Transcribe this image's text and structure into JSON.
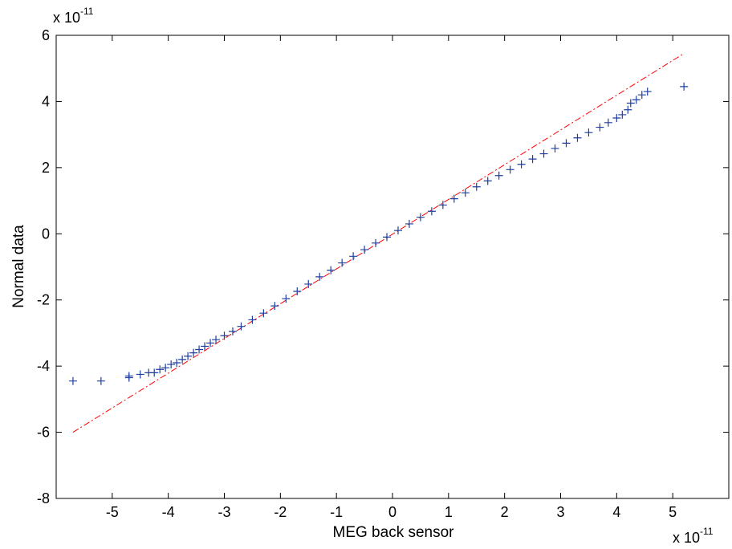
{
  "chart_data": {
    "type": "scatter",
    "title": "",
    "xlabel": "MEG back sensor",
    "ylabel": "Normal data",
    "x_exponent_base": "x 10",
    "x_exponent_power": "-11",
    "y_exponent_base": "x 10",
    "y_exponent_power": "-11",
    "xlim": [
      -6,
      6
    ],
    "ylim": [
      -8,
      6
    ],
    "xticks": [
      -5,
      -4,
      -3,
      -2,
      -1,
      0,
      1,
      2,
      3,
      4,
      5
    ],
    "yticks": [
      -8,
      -6,
      -4,
      -2,
      0,
      2,
      4,
      6
    ],
    "grid": false,
    "marker_color": "#1f3f9f",
    "line_color": "#ff0000",
    "series": [
      {
        "type": "scatter",
        "marker": "+",
        "points": [
          [
            -5.7,
            -4.45
          ],
          [
            -5.2,
            -4.45
          ],
          [
            -4.7,
            -4.35
          ],
          [
            -4.7,
            -4.3
          ],
          [
            -4.5,
            -4.25
          ],
          [
            -4.35,
            -4.2
          ],
          [
            -4.25,
            -4.2
          ],
          [
            -4.15,
            -4.1
          ],
          [
            -4.05,
            -4.05
          ],
          [
            -3.95,
            -3.95
          ],
          [
            -3.85,
            -3.9
          ],
          [
            -3.75,
            -3.8
          ],
          [
            -3.65,
            -3.7
          ],
          [
            -3.55,
            -3.6
          ],
          [
            -3.45,
            -3.5
          ],
          [
            -3.35,
            -3.4
          ],
          [
            -3.25,
            -3.3
          ],
          [
            -3.15,
            -3.2
          ],
          [
            -3.0,
            -3.08
          ],
          [
            -2.85,
            -2.95
          ],
          [
            -2.7,
            -2.8
          ],
          [
            -2.5,
            -2.6
          ],
          [
            -2.3,
            -2.4
          ],
          [
            -2.1,
            -2.18
          ],
          [
            -1.9,
            -1.96
          ],
          [
            -1.7,
            -1.74
          ],
          [
            -1.5,
            -1.52
          ],
          [
            -1.3,
            -1.3
          ],
          [
            -1.1,
            -1.1
          ],
          [
            -0.9,
            -0.88
          ],
          [
            -0.7,
            -0.68
          ],
          [
            -0.5,
            -0.48
          ],
          [
            -0.3,
            -0.28
          ],
          [
            -0.1,
            -0.1
          ],
          [
            0.1,
            0.1
          ],
          [
            0.3,
            0.3
          ],
          [
            0.5,
            0.5
          ],
          [
            0.7,
            0.68
          ],
          [
            0.9,
            0.87
          ],
          [
            1.1,
            1.06
          ],
          [
            1.3,
            1.24
          ],
          [
            1.5,
            1.42
          ],
          [
            1.7,
            1.6
          ],
          [
            1.9,
            1.76
          ],
          [
            2.1,
            1.94
          ],
          [
            2.3,
            2.1
          ],
          [
            2.5,
            2.26
          ],
          [
            2.7,
            2.42
          ],
          [
            2.9,
            2.58
          ],
          [
            3.1,
            2.74
          ],
          [
            3.3,
            2.9
          ],
          [
            3.5,
            3.06
          ],
          [
            3.7,
            3.22
          ],
          [
            3.85,
            3.36
          ],
          [
            4.0,
            3.5
          ],
          [
            4.1,
            3.6
          ],
          [
            4.2,
            3.75
          ],
          [
            4.25,
            3.95
          ],
          [
            4.35,
            4.05
          ],
          [
            4.45,
            4.2
          ],
          [
            4.55,
            4.3
          ],
          [
            5.2,
            4.45
          ]
        ]
      },
      {
        "type": "line",
        "style": "dash-dot",
        "points": [
          [
            -5.7,
            -6.0
          ],
          [
            5.2,
            5.45
          ]
        ]
      }
    ]
  }
}
